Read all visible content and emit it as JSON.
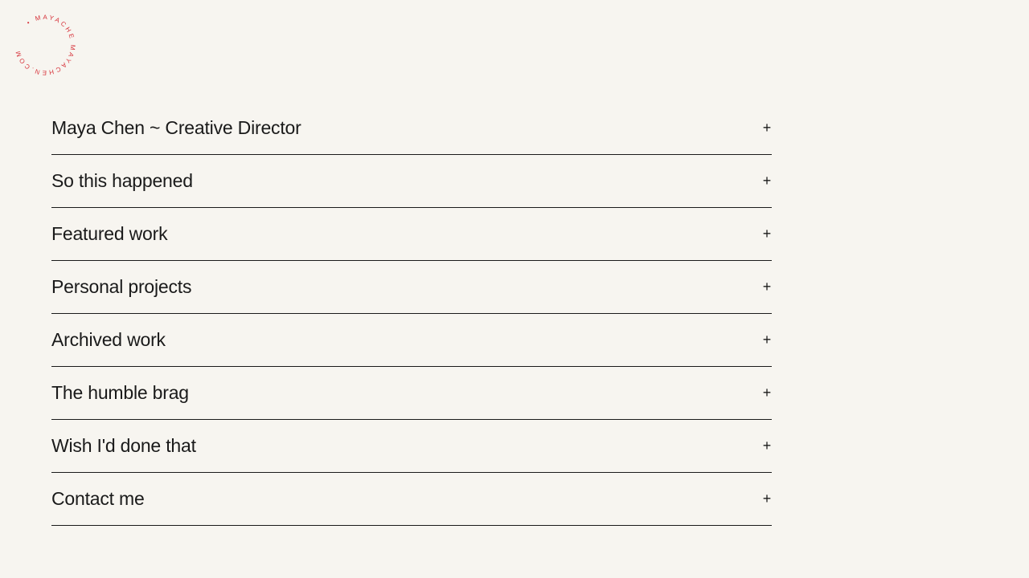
{
  "logo": {
    "text": "• MAYACHE MAYACHEN.COM",
    "color": "#d6323a"
  },
  "accordion": {
    "items": [
      {
        "label": "Maya Chen ~ Creative Director",
        "icon": "plus-icon"
      },
      {
        "label": "So this happened",
        "icon": "plus-icon"
      },
      {
        "label": "Featured work",
        "icon": "plus-icon"
      },
      {
        "label": "Personal projects",
        "icon": "plus-icon"
      },
      {
        "label": "Archived work",
        "icon": "plus-icon"
      },
      {
        "label": "The humble brag",
        "icon": "plus-icon"
      },
      {
        "label": "Wish I'd done that",
        "icon": "plus-icon"
      },
      {
        "label": "Contact me",
        "icon": "plus-icon"
      }
    ],
    "expand_symbol": "+"
  }
}
